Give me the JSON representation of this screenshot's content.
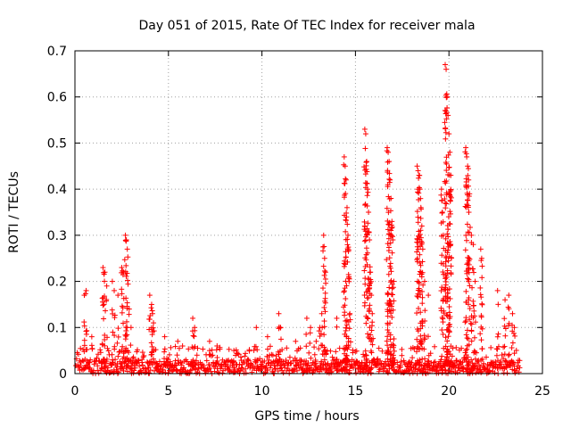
{
  "chart_data": {
    "type": "scatter",
    "title": "Day 051 of 2015, Rate Of TEC Index for receiver mala",
    "xlabel": "GPS time / hours",
    "ylabel": "ROTI / TECUs",
    "xlim": [
      0,
      25
    ],
    "ylim": [
      0,
      0.7
    ],
    "xticks": [
      "0",
      "5",
      "10",
      "15",
      "20",
      "25"
    ],
    "yticks": [
      "0",
      "0.1",
      "0.2",
      "0.3",
      "0.4",
      "0.5",
      "0.6",
      "0.7"
    ],
    "grid": true,
    "marker": "+",
    "color": "#ff0000",
    "series": [
      {
        "name": "ROTI",
        "points": [
          [
            0.5,
            0.17
          ],
          [
            0.6,
            0.18
          ],
          [
            0.9,
            0.08
          ],
          [
            1.5,
            0.23
          ],
          [
            1.6,
            0.22
          ],
          [
            1.7,
            0.19
          ],
          [
            1.55,
            0.15
          ],
          [
            2.0,
            0.2
          ],
          [
            2.1,
            0.18
          ],
          [
            2.3,
            0.17
          ],
          [
            2.5,
            0.23
          ],
          [
            2.6,
            0.22
          ],
          [
            2.7,
            0.3
          ],
          [
            2.75,
            0.29
          ],
          [
            2.8,
            0.27
          ],
          [
            2.9,
            0.14
          ],
          [
            3.0,
            0.1
          ],
          [
            4.0,
            0.17
          ],
          [
            4.1,
            0.15
          ],
          [
            4.15,
            0.13
          ],
          [
            4.2,
            0.11
          ],
          [
            4.8,
            0.08
          ],
          [
            5.5,
            0.07
          ],
          [
            6.3,
            0.12
          ],
          [
            6.4,
            0.1
          ],
          [
            7.2,
            0.07
          ],
          [
            7.6,
            0.06
          ],
          [
            8.5,
            0.05
          ],
          [
            9.7,
            0.1
          ],
          [
            10.3,
            0.08
          ],
          [
            10.9,
            0.13
          ],
          [
            11.0,
            0.1
          ],
          [
            11.8,
            0.07
          ],
          [
            12.4,
            0.12
          ],
          [
            12.6,
            0.1
          ],
          [
            12.9,
            0.07
          ],
          [
            13.3,
            0.3
          ],
          [
            13.35,
            0.25
          ],
          [
            13.4,
            0.22
          ],
          [
            13.2,
            0.13
          ],
          [
            13.1,
            0.1
          ],
          [
            14.0,
            0.12
          ],
          [
            14.4,
            0.47
          ],
          [
            14.45,
            0.45
          ],
          [
            14.5,
            0.42
          ],
          [
            14.55,
            0.36
          ],
          [
            14.6,
            0.3
          ],
          [
            14.65,
            0.21
          ],
          [
            14.7,
            0.13
          ],
          [
            15.5,
            0.53
          ],
          [
            15.55,
            0.52
          ],
          [
            15.6,
            0.46
          ],
          [
            15.65,
            0.4
          ],
          [
            15.7,
            0.35
          ],
          [
            15.75,
            0.29
          ],
          [
            15.8,
            0.22
          ],
          [
            15.85,
            0.17
          ],
          [
            15.9,
            0.13
          ],
          [
            16.7,
            0.49
          ],
          [
            16.75,
            0.48
          ],
          [
            16.8,
            0.46
          ],
          [
            16.85,
            0.42
          ],
          [
            16.9,
            0.38
          ],
          [
            16.95,
            0.33
          ],
          [
            17.0,
            0.29
          ],
          [
            17.05,
            0.2
          ],
          [
            18.3,
            0.45
          ],
          [
            18.35,
            0.44
          ],
          [
            18.4,
            0.43
          ],
          [
            18.45,
            0.4
          ],
          [
            18.5,
            0.36
          ],
          [
            18.55,
            0.32
          ],
          [
            18.6,
            0.27
          ],
          [
            18.7,
            0.2
          ],
          [
            18.9,
            0.17
          ],
          [
            19.6,
            0.4
          ],
          [
            19.65,
            0.35
          ],
          [
            19.7,
            0.3
          ],
          [
            19.8,
            0.67
          ],
          [
            19.85,
            0.66
          ],
          [
            19.9,
            0.6
          ],
          [
            19.95,
            0.56
          ],
          [
            20.0,
            0.52
          ],
          [
            20.05,
            0.48
          ],
          [
            20.1,
            0.43
          ],
          [
            20.9,
            0.49
          ],
          [
            20.95,
            0.47
          ],
          [
            21.0,
            0.45
          ],
          [
            21.05,
            0.42
          ],
          [
            21.1,
            0.39
          ],
          [
            21.2,
            0.3
          ],
          [
            21.3,
            0.28
          ],
          [
            21.4,
            0.2
          ],
          [
            21.7,
            0.27
          ],
          [
            21.75,
            0.25
          ],
          [
            22.6,
            0.18
          ],
          [
            23.0,
            0.16
          ],
          [
            23.2,
            0.17
          ],
          [
            23.4,
            0.13
          ],
          [
            23.5,
            0.1
          ]
        ]
      }
    ]
  }
}
